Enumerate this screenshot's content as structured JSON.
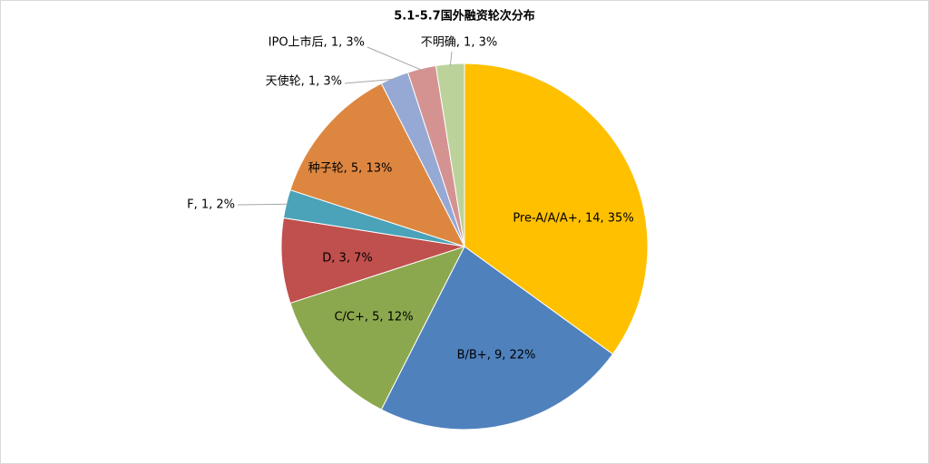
{
  "chart_data": {
    "type": "pie",
    "title": "5.1-5.7国外融资轮次分布",
    "values": [
      14,
      9,
      5,
      3,
      1,
      5,
      1,
      1,
      1
    ],
    "value_labels": [
      "Pre-A/A/A+, 14, 35%",
      "B/B+, 9, 22%",
      "C/C+, 5, 12%",
      "D, 3, 7%",
      "F, 1, 2%",
      "种子轮, 5, 13%",
      "天使轮, 1, 3%",
      "IPO上市后, 1, 3%",
      "不明确, 1, 3%"
    ],
    "colors": [
      "#ffc000",
      "#4f81bd",
      "#8ca84e",
      "#c0504d",
      "#4aa3b8",
      "#dd8640",
      "#95a9d4",
      "#d49391",
      "#bbd39b"
    ]
  }
}
